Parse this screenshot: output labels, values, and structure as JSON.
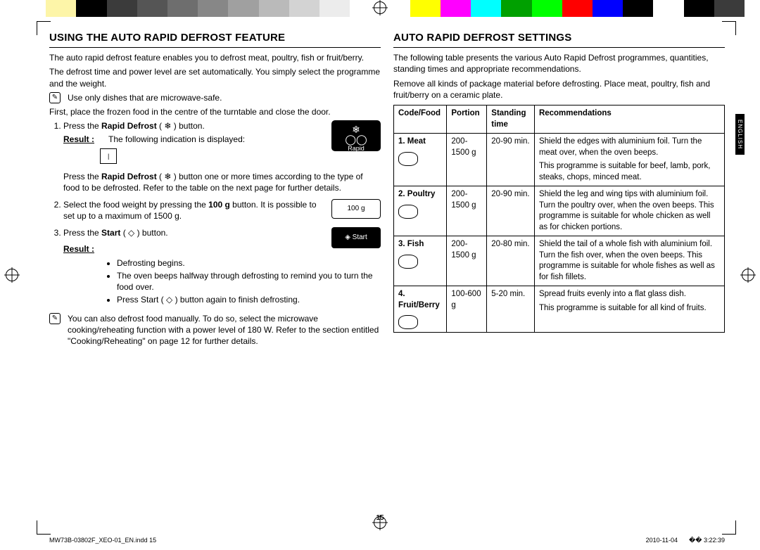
{
  "colorbar_left": [
    "#ffffff",
    "#fdf5a8",
    "#000000",
    "#3b3b3b",
    "#555555",
    "#6e6e6e",
    "#878787",
    "#a0a0a0",
    "#bababa",
    "#d3d3d3",
    "#ececec",
    "#ffffff"
  ],
  "colorbar_right": [
    "#ffffff",
    "#ffff00",
    "#ff00ff",
    "#00ffff",
    "#00a000",
    "#00ff00",
    "#ff0000",
    "#0000ff",
    "#000000",
    "#ffffff",
    "#000000",
    "#3b3b3b"
  ],
  "left": {
    "heading": "USING THE AUTO RAPID DEFROST FEATURE",
    "intro1": "The auto rapid defrost feature enables you to defrost meat, poultry, fish or fruit/berry.",
    "intro2": "The defrost time and power level are set automatically. You simply select the programme and the weight.",
    "note1": "Use only dishes that are microwave-safe.",
    "first": "First, place the frozen food in the centre of the turntable and close the door.",
    "step1_a": "Press the ",
    "step1_b": "Rapid Defrost",
    "step1_c": " ( ❄ ) button.",
    "result_label": "Result :",
    "step1_result": "The following indication is displayed:",
    "box_indicator": "|",
    "rapid_btn_label": "Rapid",
    "step1_more_a": "Press the ",
    "step1_more_b": "Rapid Defrost",
    "step1_more_c": " ( ❄ ) button one or more times according to the type of food to be defrosted. Refer to the table on the next page for further details.",
    "step2_a": "Select the food weight by pressing the ",
    "step2_b": "100 g",
    "step2_c": " button. It is possible to set up to a maximum of 1500 g.",
    "btn_100g": "100 g",
    "step3_a": "Press the ",
    "step3_b": "Start",
    "step3_c": " ( ◇ ) button.",
    "btn_start": "◈ Start",
    "bullets": [
      "Defrosting begins.",
      "The oven beeps halfway through defrosting to remind you to turn the food over.",
      "Press Start ( ◇ ) button again to finish defrosting."
    ],
    "note2": "You can also defrost food manually. To do so, select the microwave cooking/reheating function with a power level of 180 W. Refer to the section entitled \"Cooking/Reheating\" on page 12 for further details."
  },
  "right": {
    "heading": "AUTO RAPID DEFROST SETTINGS",
    "intro1": "The following table presents the various Auto Rapid Defrost programmes, quantities, standing times and appropriate recommendations.",
    "intro2": "Remove all kinds of package material before defrosting. Place meat, poultry, fish and fruit/berry on a ceramic plate.",
    "headers": [
      "Code/Food",
      "Portion",
      "Standing time",
      "Recommendations"
    ],
    "rows": [
      {
        "code": "1. Meat",
        "portion": "200-1500 g",
        "standing": "20-90 min.",
        "rec1": "Shield the edges with aluminium foil. Turn the meat over, when the oven beeps.",
        "rec2": "This programme is suitable for beef, lamb, pork, steaks, chops, minced meat."
      },
      {
        "code": "2. Poultry",
        "portion": "200-1500 g",
        "standing": "20-90 min.",
        "rec1": "Shield the leg and wing tips with aluminium foil. Turn the poultry over, when the oven beeps. This programme is suitable for whole chicken as well as for chicken portions.",
        "rec2": ""
      },
      {
        "code": "3. Fish",
        "portion": "200-1500 g",
        "standing": "20-80 min.",
        "rec1": "Shield the tail of a whole fish with aluminium foil. Turn the fish over, when the oven beeps. This programme is suitable for whole fishes as well as for fish fillets.",
        "rec2": ""
      },
      {
        "code": "4. Fruit/Berry",
        "portion": "100-600 g",
        "standing": "5-20 min.",
        "rec1": "Spread fruits evenly into a flat glass dish.",
        "rec2": "This programme is suitable for all kind of fruits."
      }
    ]
  },
  "sidebar_label": "ENGLISH",
  "page_number": "15",
  "footer_left": "MW73B-03802F_XEO-01_EN.indd   15",
  "footer_date": "2010-11-04",
  "footer_time": "�� 3:22:39"
}
